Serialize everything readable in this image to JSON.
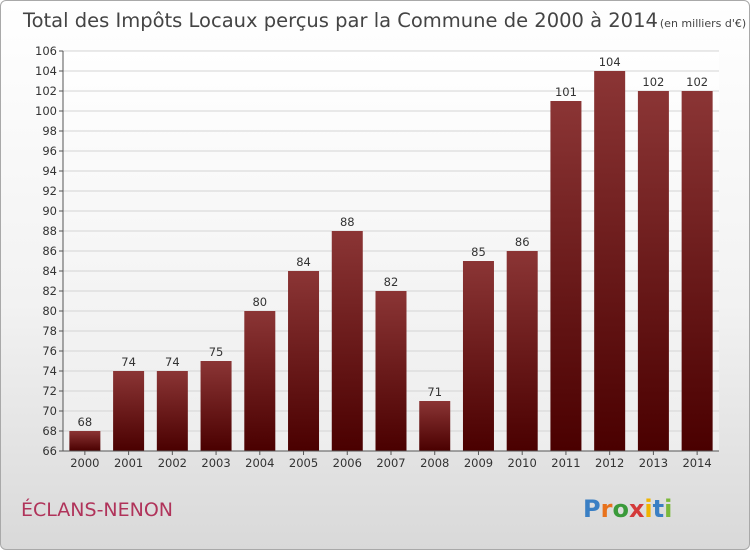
{
  "chart_data": {
    "type": "bar",
    "title": "Total des Impôts Locaux perçus par la Commune de 2000 à 2014",
    "unit": "(en milliers d'€)",
    "categories": [
      "2000",
      "2001",
      "2002",
      "2003",
      "2004",
      "2005",
      "2006",
      "2007",
      "2008",
      "2009",
      "2010",
      "2011",
      "2012",
      "2013",
      "2014"
    ],
    "values": [
      68,
      74,
      74,
      75,
      80,
      84,
      88,
      82,
      71,
      85,
      86,
      101,
      104,
      102,
      102
    ],
    "value_labels": [
      "68",
      "74",
      "74",
      "75",
      "80",
      "84",
      "88",
      "82",
      "71",
      "85",
      "86",
      "101",
      "104",
      "102",
      "102"
    ],
    "yticks": [
      "66",
      "68",
      "70",
      "72",
      "74",
      "76",
      "78",
      "80",
      "82",
      "84",
      "86",
      "88",
      "90",
      "92",
      "94",
      "96",
      "98",
      "100",
      "102",
      "104",
      "106"
    ],
    "ylim": [
      66,
      106
    ],
    "xlabel": "",
    "ylabel": "",
    "grid": true,
    "bar_color_top": "#8b3535",
    "bar_color_bottom": "#4a0000"
  },
  "commune": "ÉCLANS-NENON",
  "logo": {
    "letters": [
      "P",
      "r",
      "o",
      "x",
      "i",
      "t",
      "i"
    ],
    "colors": [
      "#3a7fc4",
      "#e8721c",
      "#3a9a3a",
      "#d43a3a",
      "#f0b400",
      "#3a7fc4",
      "#7ab83a"
    ]
  }
}
